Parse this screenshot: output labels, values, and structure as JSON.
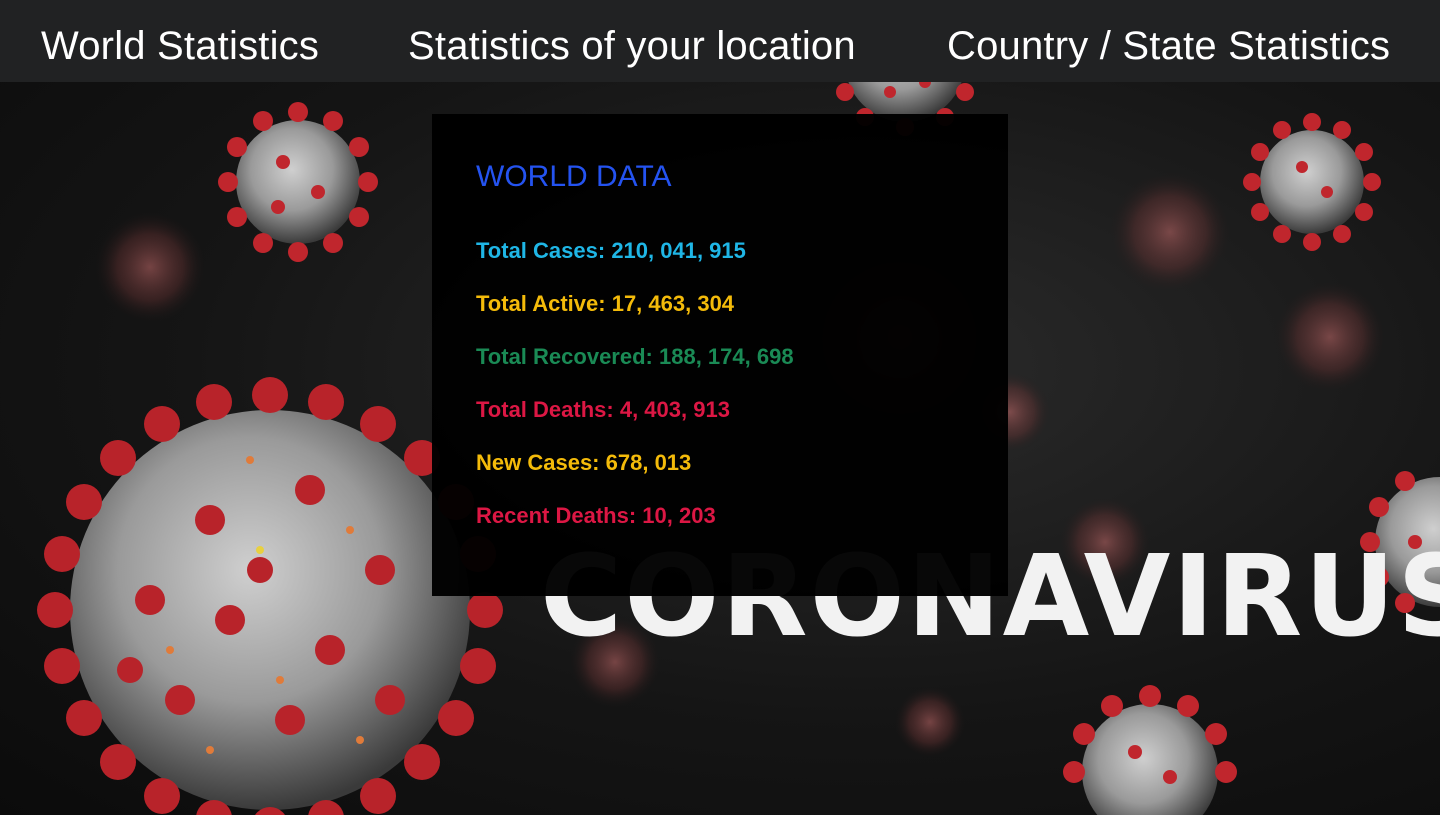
{
  "nav": {
    "world_label": "World Statistics",
    "location_label": "Statistics of your location",
    "country_label": "Country / State Statistics"
  },
  "background": {
    "banner_text": "CORONAVIRUS"
  },
  "world_data": {
    "title": "WORLD DATA",
    "total_cases": {
      "label": "Total Cases:",
      "value": "210, 041, 915",
      "color": "#1fb6e6"
    },
    "total_active": {
      "label": "Total Active:",
      "value": "17, 463, 304",
      "color": "#f4bb0a"
    },
    "total_recovered": {
      "label": "Total Recovered:",
      "value": "188, 174, 698",
      "color": "#1a8a55"
    },
    "total_deaths": {
      "label": "Total Deaths:",
      "value": "4, 403, 913",
      "color": "#dc1744"
    },
    "new_cases": {
      "label": "New Cases:",
      "value": "678, 013",
      "color": "#f4bb0a"
    },
    "recent_deaths": {
      "label": "Recent Deaths:",
      "value": "10, 203",
      "color": "#dc1744"
    }
  },
  "colors": {
    "navbar_bg": "#212223",
    "title_accent": "#2453f0",
    "virus_red": "#b8232a"
  }
}
